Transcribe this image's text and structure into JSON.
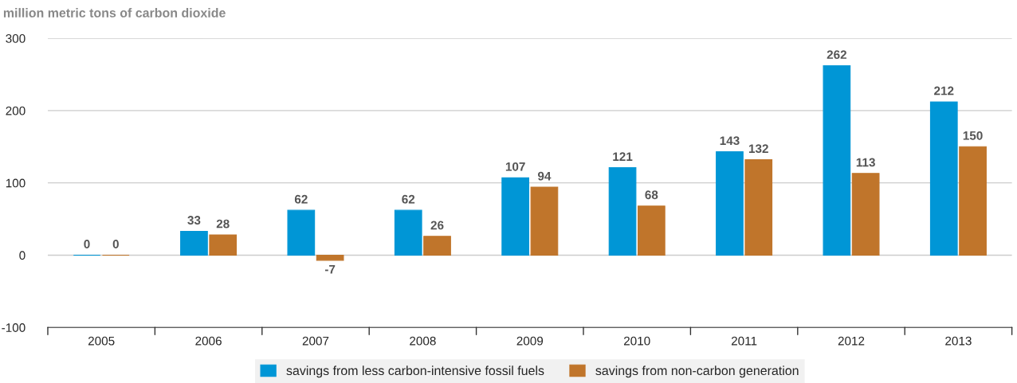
{
  "chart_data": {
    "type": "bar",
    "title": "million metric tons of carbon dioxide",
    "categories": [
      "2005",
      "2006",
      "2007",
      "2008",
      "2009",
      "2010",
      "2011",
      "2012",
      "2013"
    ],
    "series": [
      {
        "name": "savings from less carbon-intensive fossil fuels",
        "color": "#0096d6",
        "values": [
          0,
          33,
          62,
          62,
          107,
          121,
          143,
          262,
          212
        ]
      },
      {
        "name": "savings from non-carbon generation",
        "color": "#c0752b",
        "values": [
          0,
          28,
          -7,
          26,
          94,
          68,
          132,
          113,
          150
        ]
      }
    ],
    "ylim": [
      -100,
      300
    ],
    "yticks": [
      -100,
      0,
      100,
      200,
      300
    ],
    "grid": "y",
    "legend": "bottom",
    "data_labels": true
  }
}
